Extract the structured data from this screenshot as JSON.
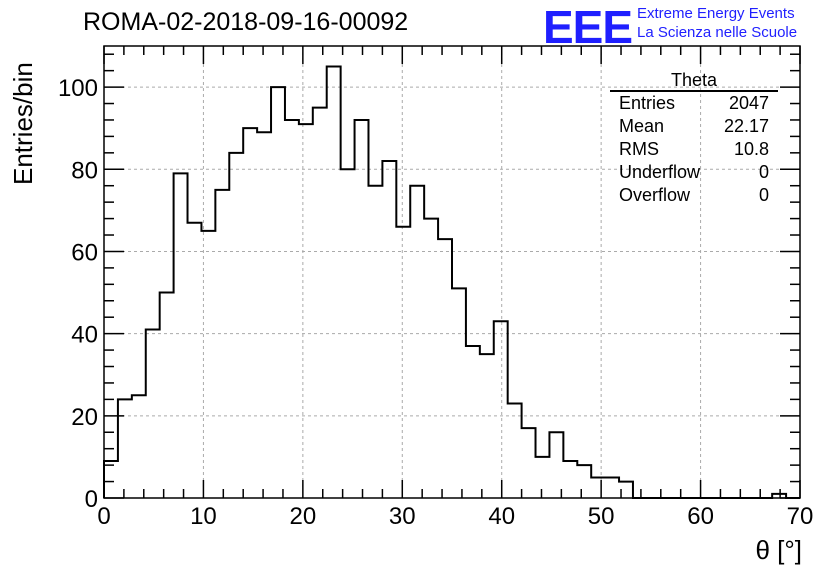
{
  "header": {
    "title": "ROMA-02-2018-09-16-00092",
    "logo": "EEE",
    "logo_line1": "Extreme Energy Events",
    "logo_line2": "La Scienza nelle Scuole"
  },
  "stats_box": {
    "name": "Theta",
    "rows": [
      {
        "label": "Entries",
        "value": "2047"
      },
      {
        "label": "Mean",
        "value": "22.17"
      },
      {
        "label": "RMS",
        "value": "10.8"
      },
      {
        "label": "Underflow",
        "value": "0"
      },
      {
        "label": "Overflow",
        "value": "0"
      }
    ]
  },
  "chart_data": {
    "type": "histogram",
    "xlabel": "θ [°]",
    "ylabel": "Entries/bin",
    "xlim": [
      0,
      70
    ],
    "ylim": [
      0,
      110
    ],
    "x_ticks": [
      0,
      10,
      20,
      30,
      40,
      50,
      60,
      70
    ],
    "y_ticks": [
      0,
      20,
      40,
      60,
      80,
      100
    ],
    "grid": true,
    "bin_width": 1.4,
    "bin_edges_start": 0,
    "values": [
      9,
      24,
      25,
      41,
      50,
      79,
      67,
      65,
      75,
      84,
      90,
      89,
      100,
      92,
      91,
      95,
      105,
      80,
      92,
      76,
      82,
      66,
      76,
      68,
      63,
      51,
      37,
      35,
      43,
      23,
      17,
      10,
      16,
      9,
      8,
      5,
      5,
      4,
      0,
      0,
      0,
      0,
      0,
      0,
      0,
      0,
      0,
      0,
      1,
      0
    ]
  }
}
